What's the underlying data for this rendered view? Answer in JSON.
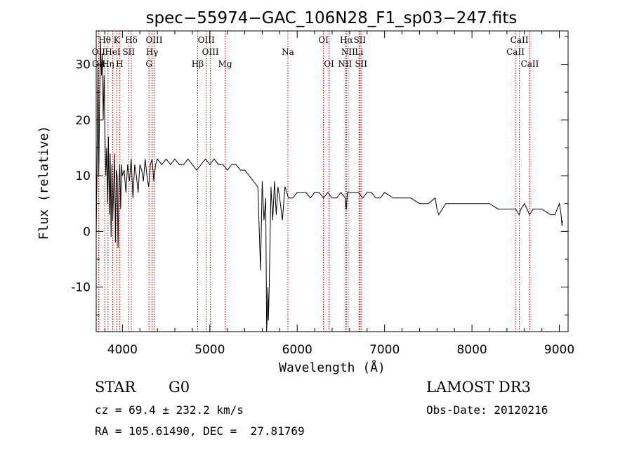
{
  "chart_data": {
    "type": "line",
    "title": "spec−55974−GAC_106N28_F1_sp03−247.fits",
    "xlabel": "Wavelength (Å)",
    "ylabel": "Flux (relative)",
    "xlim": [
      3700,
      9100
    ],
    "ylim": [
      -18,
      36
    ],
    "xticks": [
      4000,
      5000,
      6000,
      7000,
      8000,
      9000
    ],
    "yticks": [
      -10,
      0,
      10,
      20,
      30
    ],
    "series": [
      {
        "name": "flux",
        "x": [
          3700,
          3710,
          3720,
          3730,
          3740,
          3750,
          3760,
          3770,
          3780,
          3790,
          3800,
          3810,
          3820,
          3830,
          3840,
          3850,
          3860,
          3870,
          3880,
          3890,
          3900,
          3910,
          3920,
          3930,
          3940,
          3950,
          3960,
          3970,
          3980,
          3990,
          4000,
          4020,
          4040,
          4060,
          4080,
          4100,
          4120,
          4140,
          4160,
          4180,
          4200,
          4220,
          4240,
          4260,
          4280,
          4300,
          4320,
          4340,
          4360,
          4380,
          4400,
          4450,
          4500,
          4550,
          4600,
          4650,
          4700,
          4750,
          4800,
          4850,
          4900,
          4950,
          5000,
          5050,
          5100,
          5150,
          5200,
          5250,
          5300,
          5350,
          5400,
          5450,
          5500,
          5550,
          5580,
          5600,
          5620,
          5640,
          5650,
          5660,
          5665,
          5670,
          5680,
          5700,
          5720,
          5740,
          5760,
          5780,
          5800,
          5830,
          5860,
          5900,
          5950,
          6000,
          6050,
          6100,
          6150,
          6200,
          6250,
          6300,
          6350,
          6400,
          6450,
          6500,
          6550,
          6560,
          6563,
          6566,
          6575,
          6600,
          6650,
          6700,
          6750,
          6800,
          6850,
          6900,
          6950,
          7000,
          7100,
          7200,
          7300,
          7400,
          7500,
          7580,
          7600,
          7620,
          7700,
          7800,
          7900,
          8000,
          8100,
          8200,
          8300,
          8400,
          8500,
          8540,
          8560,
          8600,
          8660,
          8700,
          8800,
          8900,
          8950,
          9000,
          9020,
          9030,
          9035
        ],
        "values": [
          -1,
          12,
          30,
          10,
          25,
          34,
          28,
          32,
          20,
          28,
          18,
          10,
          15,
          5,
          17,
          3,
          14,
          -1,
          12,
          2,
          8,
          14,
          -2,
          11,
          10,
          -3,
          9,
          12,
          4,
          12,
          10,
          11,
          7,
          12,
          9,
          13,
          6,
          12,
          10,
          7,
          12,
          11,
          9,
          13,
          10,
          8,
          12,
          13,
          9,
          12,
          13,
          12,
          13,
          12,
          13,
          12,
          12,
          13,
          12,
          11,
          12,
          13,
          12,
          13,
          12,
          12,
          11,
          12,
          12,
          11,
          11,
          10,
          9,
          8,
          -7,
          9,
          2,
          6,
          -18,
          -14,
          -10,
          -16,
          -10,
          8,
          2,
          9,
          3,
          8,
          6,
          2,
          8,
          6,
          6,
          7,
          7,
          7,
          6,
          7,
          7,
          6,
          7,
          6,
          6,
          7,
          6,
          4,
          4,
          5,
          7,
          7,
          7,
          7,
          6,
          7,
          7,
          6,
          6,
          7,
          6,
          6,
          6,
          5,
          5,
          6,
          4,
          3,
          5,
          5,
          5,
          5,
          5,
          5,
          4,
          4,
          4,
          3,
          4,
          5,
          3,
          4,
          4,
          3,
          3,
          5,
          3,
          1,
          2
        ]
      }
    ],
    "spectral_lines": [
      {
        "label": "Hθ",
        "wave": 3798,
        "row": 0
      },
      {
        "label": "K",
        "wave": 3934,
        "row": 0
      },
      {
        "label": "Hδ",
        "wave": 4102,
        "row": 0
      },
      {
        "label": "OIII",
        "wave": 4363,
        "row": 0
      },
      {
        "label": "OIII",
        "wave": 4959,
        "row": 0
      },
      {
        "label": "OI",
        "wave": 6300,
        "row": 0
      },
      {
        "label": "Hα",
        "wave": 6563,
        "row": 0
      },
      {
        "label": "SII",
        "wave": 6716,
        "row": 0
      },
      {
        "label": "CaII",
        "wave": 8542,
        "row": 0
      },
      {
        "label": "OII",
        "wave": 3727,
        "row": 1
      },
      {
        "label": "HeI",
        "wave": 3889,
        "row": 1
      },
      {
        "label": "SII",
        "wave": 4072,
        "row": 1
      },
      {
        "label": "Hγ",
        "wave": 4340,
        "row": 1
      },
      {
        "label": "OIII",
        "wave": 5007,
        "row": 1
      },
      {
        "label": "Na",
        "wave": 5893,
        "row": 1
      },
      {
        "label": "NII",
        "wave": 6584,
        "row": 1
      },
      {
        "label": "Li",
        "wave": 6708,
        "row": 1
      },
      {
        "label": "CaII",
        "wave": 8498,
        "row": 1
      },
      {
        "label": "OII",
        "wave": 3729,
        "row": 2
      },
      {
        "label": "Hη",
        "wave": 3835,
        "row": 2
      },
      {
        "label": "H",
        "wave": 3968,
        "row": 2
      },
      {
        "label": "G",
        "wave": 4304,
        "row": 2
      },
      {
        "label": "Hβ",
        "wave": 4861,
        "row": 2
      },
      {
        "label": "Mg",
        "wave": 5175,
        "row": 2
      },
      {
        "label": "OI",
        "wave": 6364,
        "row": 2
      },
      {
        "label": "NII",
        "wave": 6548,
        "row": 2
      },
      {
        "label": "SII",
        "wave": 6731,
        "row": 2
      },
      {
        "label": "CaII",
        "wave": 8662,
        "row": 2
      }
    ],
    "line_color": "#cc0000"
  },
  "info": {
    "object_class": "STAR",
    "subclass": "G0",
    "survey": "LAMOST DR3",
    "cz": "cz = 69.4 ± 232.2 km/s",
    "obs_date": "Obs-Date: 20120216",
    "coords": "RA = 105.61490, DEC =  27.81769"
  }
}
